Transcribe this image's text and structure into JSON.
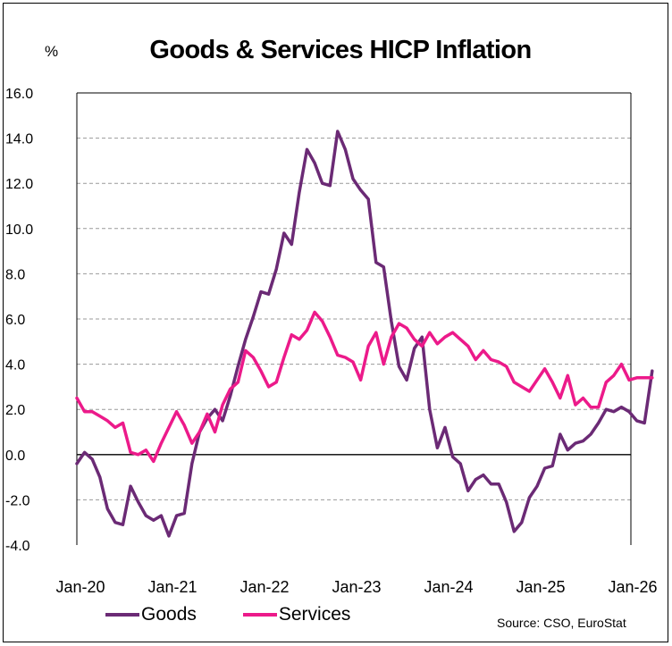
{
  "title": "Goods & Services HICP Inflation",
  "unit_label": "%",
  "source": "Source: CSO, EuroStat",
  "colors": {
    "Goods": "#6b2a75",
    "Services": "#ec1a8a",
    "grid": "#999999"
  },
  "chart_data": {
    "type": "line",
    "title": "Goods & Services HICP Inflation",
    "ylabel": "%",
    "ylim": [
      -4.0,
      16.0
    ],
    "yticks": [
      "-4.0",
      "-2.0",
      "0.0",
      "2.0",
      "4.0",
      "6.0",
      "8.0",
      "10.0",
      "12.0",
      "14.0",
      "16.0"
    ],
    "xtick_labels": [
      "Jan-20",
      "Jan-21",
      "Jan-22",
      "Jan-23",
      "Jan-24",
      "Jan-25",
      "Jan-26"
    ],
    "x_start": "Jan-20",
    "x_end": "Jan-26",
    "grid": true,
    "legend_position": "bottom",
    "series": [
      {
        "name": "Goods",
        "values": [
          -0.4,
          0.1,
          -0.2,
          -1.0,
          -2.4,
          -3.0,
          -3.1,
          -1.4,
          -2.1,
          -2.7,
          -2.9,
          -2.7,
          -3.6,
          -2.7,
          -2.6,
          -0.4,
          1.0,
          1.6,
          2.0,
          1.5,
          2.6,
          3.9,
          5.1,
          6.1,
          7.2,
          7.1,
          8.2,
          9.8,
          9.3,
          11.6,
          13.5,
          12.9,
          12.0,
          11.9,
          14.3,
          13.5,
          12.2,
          11.7,
          11.3,
          8.5,
          8.3,
          5.9,
          3.9,
          3.3,
          4.7,
          5.2,
          2.0,
          0.3,
          1.2,
          -0.1,
          -0.4,
          -1.6,
          -1.1,
          -0.9,
          -1.3,
          -1.3,
          -2.1,
          -3.4,
          -3.0,
          -1.9,
          -1.4,
          -0.6,
          -0.5,
          0.9,
          0.2,
          0.5,
          0.6,
          0.9,
          1.4,
          2.0,
          1.9,
          2.1,
          1.9,
          1.5,
          1.4,
          3.7
        ]
      },
      {
        "name": "Services",
        "values": [
          2.5,
          1.9,
          1.9,
          1.7,
          1.5,
          1.2,
          1.4,
          0.1,
          0.0,
          0.2,
          -0.3,
          0.5,
          1.2,
          1.9,
          1.3,
          0.5,
          1.0,
          1.8,
          1.0,
          2.2,
          2.9,
          3.2,
          4.6,
          4.3,
          3.7,
          3.0,
          3.2,
          4.3,
          5.3,
          5.1,
          5.5,
          6.3,
          5.9,
          5.2,
          4.4,
          4.3,
          4.1,
          3.3,
          4.8,
          5.4,
          4.0,
          5.2,
          5.8,
          5.6,
          5.1,
          4.8,
          5.4,
          4.9,
          5.2,
          5.4,
          5.1,
          4.8,
          4.2,
          4.6,
          4.2,
          4.1,
          3.9,
          3.2,
          3.0,
          2.8,
          3.3,
          3.8,
          3.2,
          2.5,
          3.5,
          2.2,
          2.5,
          2.1,
          2.1,
          3.2,
          3.5,
          4.0,
          3.3,
          3.4,
          3.4,
          3.4
        ]
      }
    ]
  }
}
